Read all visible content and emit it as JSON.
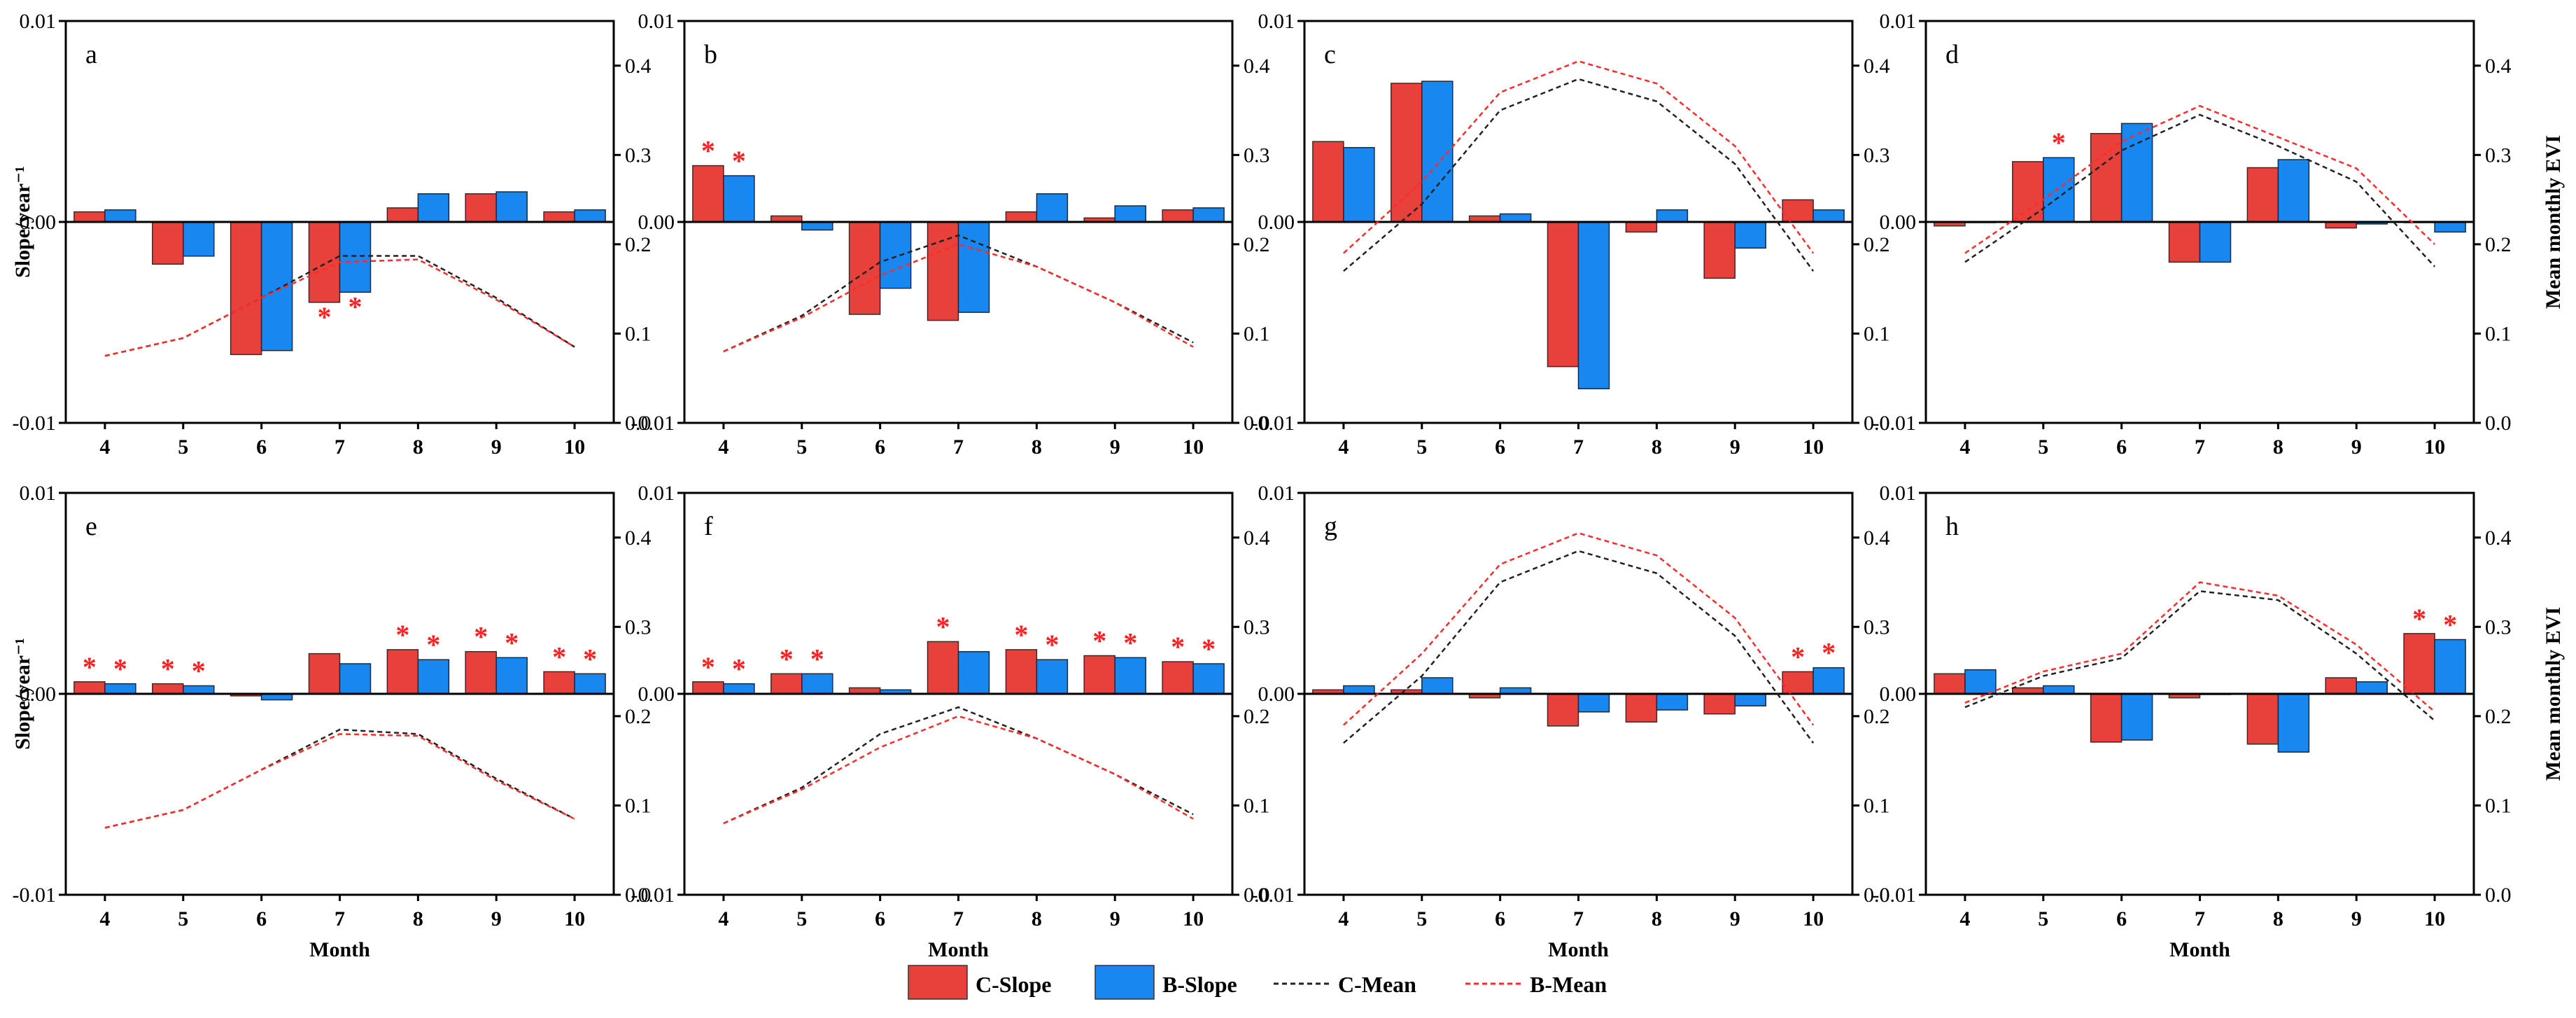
{
  "colors": {
    "c_slope": "#e8403a",
    "b_slope": "#1888f0",
    "c_mean": "#222222",
    "b_mean": "#ff2b2b",
    "star": "#ff2020"
  },
  "chart_data": {
    "type": "bar",
    "months": [
      "4",
      "5",
      "6",
      "7",
      "8",
      "9",
      "10"
    ],
    "xlabel": "Month",
    "ylabel_left": "Slope/year⁻¹",
    "ylabel_right": "Mean monthly EVI",
    "left_ylim": [
      -0.01,
      0.01
    ],
    "left_ticks": [
      "0.01",
      "0.00",
      "-0.01"
    ],
    "right_ylim": [
      0.0,
      0.45
    ],
    "right_ticks": [
      "0.4",
      "0.3",
      "0.2",
      "0.1",
      "0.0"
    ],
    "legend": [
      "C-Slope",
      "B-Slope",
      "C-Mean",
      "B-Mean"
    ],
    "panels": [
      {
        "label": "a",
        "c_slope": [
          0.0005,
          -0.0021,
          -0.0066,
          -0.004,
          0.0007,
          0.0014,
          0.0005
        ],
        "b_slope": [
          0.0006,
          -0.0017,
          -0.0064,
          -0.0035,
          0.0014,
          0.0015,
          0.0006
        ],
        "c_sig": [
          false,
          false,
          false,
          true,
          false,
          false,
          false
        ],
        "b_sig": [
          false,
          false,
          false,
          true,
          false,
          false,
          false
        ],
        "c_mean": [
          0.075,
          0.095,
          0.14,
          0.187,
          0.187,
          0.14,
          0.085
        ],
        "b_mean": [
          0.075,
          0.095,
          0.14,
          0.18,
          0.183,
          0.138,
          0.085
        ]
      },
      {
        "label": "b",
        "c_slope": [
          0.0028,
          0.0003,
          -0.0046,
          -0.0049,
          0.0005,
          0.0002,
          0.0006
        ],
        "b_slope": [
          0.0023,
          -0.0004,
          -0.0033,
          -0.0045,
          0.0014,
          0.0008,
          0.0007
        ],
        "c_sig": [
          true,
          false,
          false,
          false,
          false,
          false,
          false
        ],
        "b_sig": [
          true,
          false,
          false,
          false,
          false,
          false,
          false
        ],
        "c_mean": [
          0.08,
          0.12,
          0.18,
          0.21,
          0.175,
          0.135,
          0.09
        ],
        "b_mean": [
          0.08,
          0.118,
          0.165,
          0.2,
          0.175,
          0.135,
          0.085
        ]
      },
      {
        "label": "c",
        "c_slope": [
          0.004,
          0.0069,
          0.0003,
          -0.0072,
          -0.0005,
          -0.0028,
          0.0011
        ],
        "b_slope": [
          0.0037,
          0.007,
          0.0004,
          -0.0083,
          0.0006,
          -0.0013,
          0.0006
        ],
        "c_sig": [
          false,
          false,
          false,
          false,
          false,
          false,
          false
        ],
        "b_sig": [
          false,
          false,
          false,
          false,
          false,
          false,
          false
        ],
        "c_mean": [
          0.17,
          0.245,
          0.35,
          0.385,
          0.36,
          0.29,
          0.17
        ],
        "b_mean": [
          0.19,
          0.27,
          0.37,
          0.405,
          0.38,
          0.31,
          0.19
        ]
      },
      {
        "label": "d",
        "c_slope": [
          -0.0002,
          0.003,
          0.0044,
          -0.002,
          0.0027,
          -0.0003,
          0.0
        ],
        "b_slope": [
          0.0,
          0.0032,
          0.0049,
          -0.002,
          0.0031,
          -0.0001,
          -0.0005
        ],
        "c_sig": [
          false,
          false,
          false,
          false,
          false,
          false,
          false
        ],
        "b_sig": [
          false,
          true,
          false,
          false,
          false,
          false,
          false
        ],
        "c_mean": [
          0.18,
          0.24,
          0.305,
          0.345,
          0.31,
          0.27,
          0.175
        ],
        "b_mean": [
          0.19,
          0.25,
          0.315,
          0.355,
          0.32,
          0.285,
          0.2
        ]
      },
      {
        "label": "e",
        "c_slope": [
          0.0006,
          0.0005,
          -0.0001,
          0.002,
          0.0022,
          0.0021,
          0.0011
        ],
        "b_slope": [
          0.0005,
          0.0004,
          -0.0003,
          0.0015,
          0.0017,
          0.0018,
          0.001
        ],
        "c_sig": [
          true,
          true,
          false,
          false,
          true,
          true,
          true
        ],
        "b_sig": [
          true,
          true,
          false,
          false,
          true,
          true,
          true
        ],
        "c_mean": [
          0.075,
          0.095,
          0.14,
          0.185,
          0.18,
          0.13,
          0.085
        ],
        "b_mean": [
          0.075,
          0.095,
          0.14,
          0.18,
          0.178,
          0.128,
          0.085
        ]
      },
      {
        "label": "f",
        "c_slope": [
          0.0006,
          0.001,
          0.0003,
          0.0026,
          0.0022,
          0.0019,
          0.0016
        ],
        "b_slope": [
          0.0005,
          0.001,
          0.0002,
          0.0021,
          0.0017,
          0.0018,
          0.0015
        ],
        "c_sig": [
          true,
          true,
          false,
          true,
          true,
          true,
          true
        ],
        "b_sig": [
          true,
          true,
          false,
          false,
          true,
          true,
          true
        ],
        "c_mean": [
          0.08,
          0.12,
          0.18,
          0.21,
          0.175,
          0.135,
          0.09
        ],
        "b_mean": [
          0.08,
          0.118,
          0.165,
          0.2,
          0.175,
          0.135,
          0.085
        ]
      },
      {
        "label": "g",
        "c_slope": [
          0.0002,
          0.0002,
          -0.0002,
          -0.0016,
          -0.0014,
          -0.001,
          0.0011
        ],
        "b_slope": [
          0.0004,
          0.0008,
          0.0003,
          -0.0009,
          -0.0008,
          -0.0006,
          0.0013
        ],
        "c_sig": [
          false,
          false,
          false,
          false,
          false,
          false,
          true
        ],
        "b_sig": [
          false,
          false,
          false,
          false,
          false,
          false,
          true
        ],
        "c_mean": [
          0.17,
          0.245,
          0.35,
          0.385,
          0.36,
          0.29,
          0.17
        ],
        "b_mean": [
          0.19,
          0.27,
          0.37,
          0.405,
          0.38,
          0.31,
          0.19
        ]
      },
      {
        "label": "h",
        "c_slope": [
          0.001,
          0.0003,
          -0.0024,
          -0.0002,
          -0.0025,
          0.0008,
          0.003
        ],
        "b_slope": [
          0.0012,
          0.0004,
          -0.0023,
          0.0,
          -0.0029,
          0.0006,
          0.0027
        ],
        "c_sig": [
          false,
          false,
          false,
          false,
          false,
          false,
          true
        ],
        "b_sig": [
          false,
          false,
          false,
          false,
          false,
          false,
          true
        ],
        "c_mean": [
          0.21,
          0.245,
          0.265,
          0.34,
          0.33,
          0.27,
          0.195
        ],
        "b_mean": [
          0.215,
          0.25,
          0.27,
          0.35,
          0.335,
          0.28,
          0.205
        ]
      }
    ]
  }
}
